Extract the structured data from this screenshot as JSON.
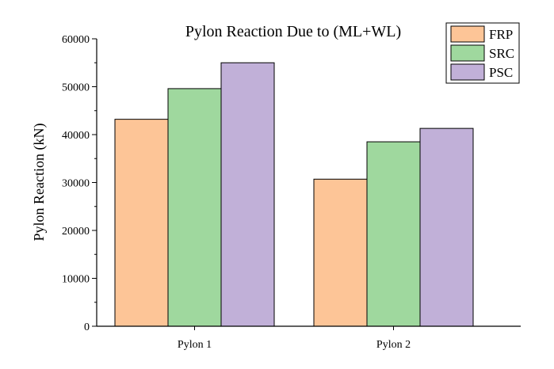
{
  "chart_data": {
    "type": "bar",
    "title": "Pylon Reaction Due to (ML+WL)",
    "xlabel": "",
    "ylabel": "Pylon Reaction (kN)",
    "ylim": [
      0,
      60000
    ],
    "yticks": [
      0,
      10000,
      20000,
      30000,
      40000,
      50000,
      60000
    ],
    "yticklabels": [
      "0",
      "10000",
      "20000",
      "30000",
      "40000",
      "50000",
      "60000"
    ],
    "categories": [
      "Pylon 1",
      "Pylon 2"
    ],
    "series": [
      {
        "name": "FRP",
        "values": [
          43200,
          30700
        ],
        "color": "#fdc597"
      },
      {
        "name": "SRC",
        "values": [
          49600,
          38500
        ],
        "color": "#9fd89e"
      },
      {
        "name": "PSC",
        "values": [
          55000,
          41300
        ],
        "color": "#c1b0d8"
      }
    ],
    "legend_position": "top-right",
    "grid": false
  }
}
